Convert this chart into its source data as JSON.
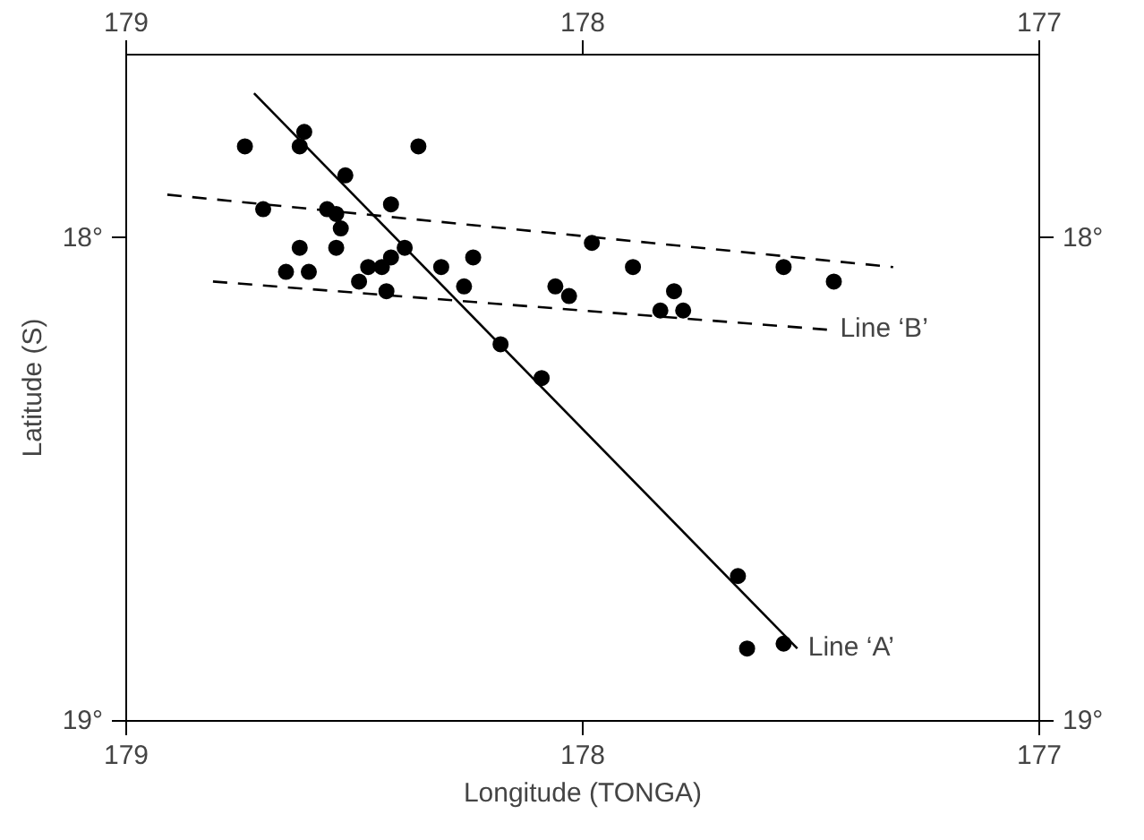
{
  "chart_data": {
    "type": "scatter",
    "xlabel": "Longitude (TONGA)",
    "ylabel": "Latitude (S)",
    "xlim": [
      179,
      177
    ],
    "xticks": [
      179,
      178,
      177
    ],
    "x2lim": [
      179,
      177
    ],
    "x2ticks": [
      179,
      178,
      177
    ],
    "ylim": [
      19,
      17.62
    ],
    "yticks": [
      {
        "value": 18,
        "label": "18°"
      },
      {
        "value": 19,
        "label": "19°"
      }
    ],
    "y2lim": [
      19,
      17.62
    ],
    "y2ticks": [
      {
        "value": 18,
        "label": "18°"
      },
      {
        "value": 19,
        "label": "19°"
      }
    ],
    "grid": false,
    "series": [
      {
        "color": "#000000",
        "marker": "circle",
        "x": [
          178.74,
          178.61,
          178.62,
          178.36,
          178.52,
          178.7,
          178.42,
          178.56,
          178.54,
          178.53,
          178.39,
          178.42,
          178.44,
          178.47,
          178.62,
          178.54,
          178.65,
          178.6,
          178.49,
          178.43,
          178.31,
          178.24,
          178.26,
          178.18,
          178.09,
          178.06,
          178.03,
          177.98,
          177.89,
          177.56,
          177.45,
          177.8,
          177.83,
          177.78,
          177.66,
          177.64,
          177.56
        ],
        "values": [
          17.81,
          17.78,
          17.81,
          17.81,
          17.87,
          17.94,
          17.93,
          17.94,
          17.95,
          17.98,
          18.02,
          18.04,
          18.06,
          18.06,
          18.02,
          18.02,
          18.07,
          18.07,
          18.09,
          18.11,
          18.06,
          18.04,
          18.1,
          18.22,
          18.29,
          18.1,
          18.12,
          18.01,
          18.06,
          18.06,
          18.09,
          18.11,
          18.15,
          18.15,
          18.7,
          18.85,
          18.84
        ]
      },
      {
        "type": "line",
        "color": "#000000",
        "line_style": "solid",
        "x": [
          178.72,
          177.53
        ],
        "values": [
          17.7,
          18.85
        ]
      },
      {
        "type": "line",
        "color": "#000000",
        "line_style": "dashed",
        "x": [
          178.91,
          177.32
        ],
        "values": [
          17.91,
          18.06
        ]
      },
      {
        "type": "line",
        "color": "#000000",
        "line_style": "dashed",
        "x": [
          178.81,
          177.46
        ],
        "values": [
          18.09,
          18.19
        ]
      }
    ],
    "annotations": [
      {
        "text": "Line ‘A’",
        "x": 177.53,
        "y": 18.85
      },
      {
        "text": "Line ‘B’",
        "x": 177.46,
        "y": 18.19
      }
    ]
  }
}
